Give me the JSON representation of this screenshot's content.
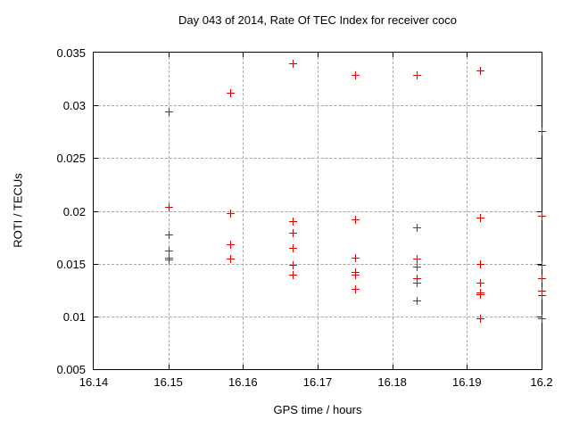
{
  "chart_data": {
    "type": "scatter",
    "title": "Day 043 of 2014, Rate Of TEC Index for receiver coco",
    "xlabel": "GPS time / hours",
    "ylabel": "ROTI / TECUs",
    "xlim": [
      16.14,
      16.2
    ],
    "ylim": [
      0.005,
      0.035
    ],
    "xticks": [
      16.14,
      16.15,
      16.16,
      16.17,
      16.18,
      16.19,
      16.2
    ],
    "xtick_labels": [
      "16.14",
      "16.15",
      "16.16",
      "16.17",
      "16.18",
      "16.19",
      "16.2"
    ],
    "yticks": [
      0.005,
      0.01,
      0.015,
      0.02,
      0.025,
      0.03,
      0.035
    ],
    "ytick_labels": [
      "0.005",
      "0.01",
      "0.015",
      "0.02",
      "0.025",
      "0.03",
      "0.035"
    ],
    "grid": true,
    "legend": "none",
    "marker": "plus",
    "marker_color": "#e60000",
    "border_color": "#000000",
    "grid_color": "#a5a5a5",
    "background_color": "#ffffff",
    "series": [
      {
        "name": "ROTI",
        "points": [
          [
            16.15,
            0.0294
          ],
          [
            16.15,
            0.0204
          ],
          [
            16.15,
            0.0178
          ],
          [
            16.15,
            0.0162
          ],
          [
            16.15,
            0.0156
          ],
          [
            16.15,
            0.0154
          ],
          [
            16.1583,
            0.0312
          ],
          [
            16.1583,
            0.0198
          ],
          [
            16.1583,
            0.0168
          ],
          [
            16.1583,
            0.0155
          ],
          [
            16.1667,
            0.034
          ],
          [
            16.1667,
            0.019
          ],
          [
            16.1667,
            0.0179
          ],
          [
            16.1667,
            0.0165
          ],
          [
            16.1667,
            0.0149
          ],
          [
            16.1667,
            0.014
          ],
          [
            16.175,
            0.0329
          ],
          [
            16.175,
            0.0192
          ],
          [
            16.175,
            0.0156
          ],
          [
            16.175,
            0.0142
          ],
          [
            16.175,
            0.014
          ],
          [
            16.175,
            0.0126
          ],
          [
            16.1833,
            0.0329
          ],
          [
            16.1833,
            0.0184
          ],
          [
            16.1833,
            0.0155
          ],
          [
            16.1833,
            0.0147
          ],
          [
            16.1833,
            0.0136
          ],
          [
            16.1833,
            0.0132
          ],
          [
            16.1833,
            0.0115
          ],
          [
            16.1917,
            0.0333
          ],
          [
            16.1917,
            0.0194
          ],
          [
            16.1917,
            0.015
          ],
          [
            16.1917,
            0.0132
          ],
          [
            16.1917,
            0.0123
          ],
          [
            16.1917,
            0.0121
          ],
          [
            16.1917,
            0.0098
          ],
          [
            16.2,
            0.0276
          ],
          [
            16.2,
            0.0195
          ],
          [
            16.2,
            0.0149
          ],
          [
            16.2,
            0.0136
          ],
          [
            16.2,
            0.0124
          ],
          [
            16.2,
            0.012
          ],
          [
            16.2,
            0.0098
          ]
        ]
      }
    ]
  }
}
